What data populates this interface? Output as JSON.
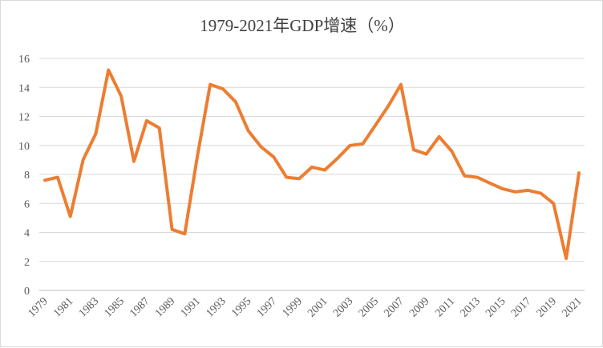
{
  "chart_data": {
    "type": "line",
    "title": "1979-2021年GDP增速（%）",
    "xlabel": "",
    "ylabel": "",
    "ylim": [
      0,
      16
    ],
    "yticks": [
      0,
      2,
      4,
      6,
      8,
      10,
      12,
      14,
      16
    ],
    "grid": true,
    "legend": "none",
    "color": "#ED7D31",
    "x": [
      1979,
      1980,
      1981,
      1982,
      1983,
      1984,
      1985,
      1986,
      1987,
      1988,
      1989,
      1990,
      1991,
      1992,
      1993,
      1994,
      1995,
      1996,
      1997,
      1998,
      1999,
      2000,
      2001,
      2002,
      2003,
      2004,
      2005,
      2006,
      2007,
      2008,
      2009,
      2010,
      2011,
      2012,
      2013,
      2014,
      2015,
      2016,
      2017,
      2018,
      2019,
      2020,
      2021
    ],
    "xticklabels": [
      "1979",
      "1981",
      "1983",
      "1985",
      "1987",
      "1989",
      "1991",
      "1993",
      "1995",
      "1997",
      "1999",
      "2001",
      "2003",
      "2005",
      "2007",
      "2009",
      "2011",
      "2013",
      "2015",
      "2017",
      "2019",
      "2021"
    ],
    "values": [
      7.6,
      7.8,
      5.1,
      9.0,
      10.8,
      15.2,
      13.4,
      8.9,
      11.7,
      11.2,
      4.2,
      3.9,
      9.3,
      14.2,
      13.9,
      13.0,
      11.0,
      9.9,
      9.2,
      7.8,
      7.7,
      8.5,
      8.3,
      9.1,
      10.0,
      10.1,
      11.4,
      12.7,
      14.2,
      9.7,
      9.4,
      10.6,
      9.6,
      7.9,
      7.8,
      7.4,
      7.0,
      6.8,
      6.9,
      6.7,
      6.0,
      2.2,
      8.1
    ]
  }
}
